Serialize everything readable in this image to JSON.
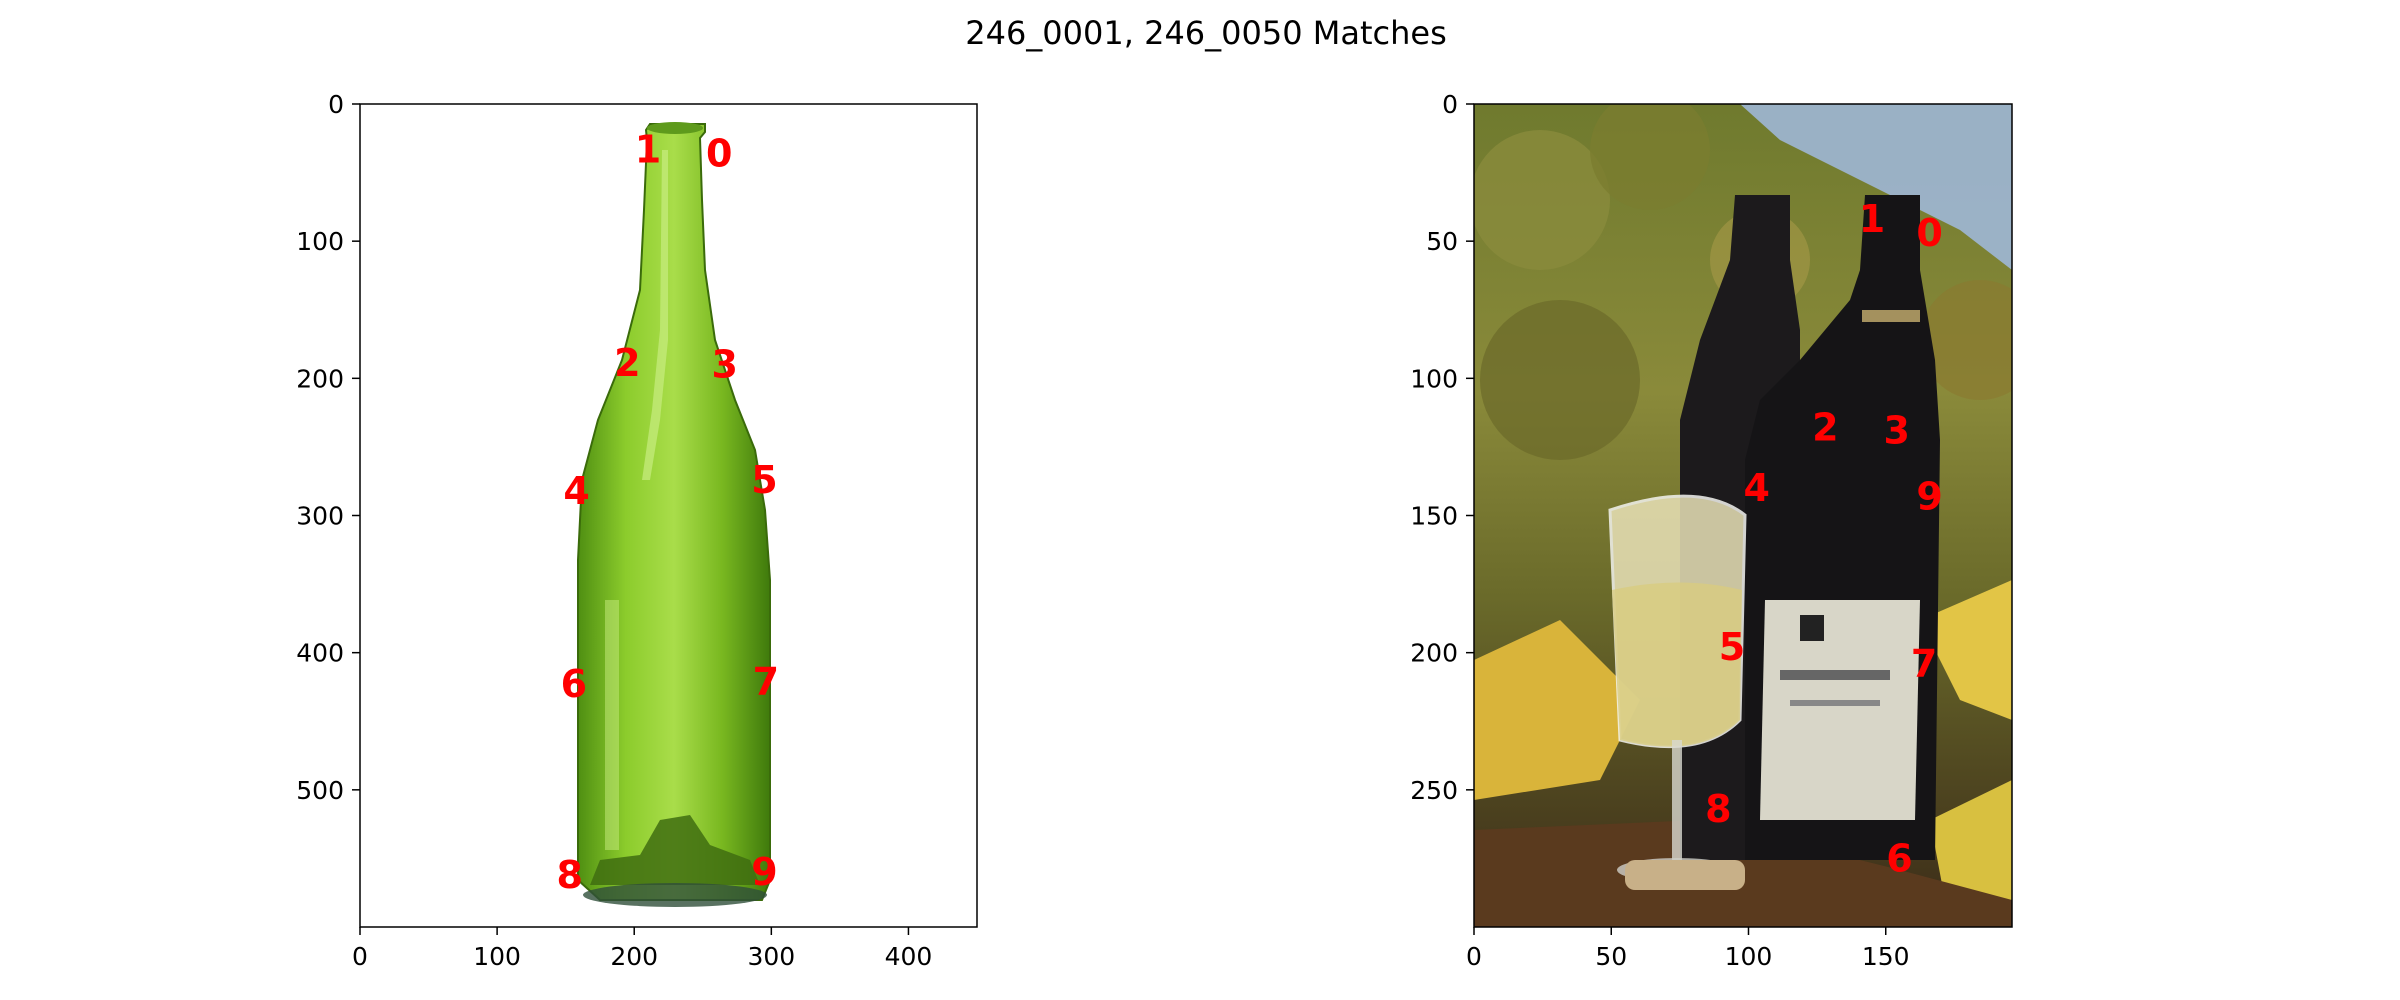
{
  "chart_data": {
    "type": "scatter",
    "title": "246_0001, 246_0050 Matches",
    "label_color": "#ff0000",
    "grid": false,
    "legend": "none",
    "panels": [
      {
        "id": "left",
        "image_content": "green glass wine bottle on white background",
        "xlim": [
          0,
          450
        ],
        "ylim": [
          600,
          0
        ],
        "xticks": [
          0,
          100,
          200,
          300,
          400
        ],
        "yticks": [
          0,
          100,
          200,
          300,
          400,
          500
        ],
        "points": [
          {
            "label": "0",
            "x": 262,
            "y": 36
          },
          {
            "label": "1",
            "x": 210,
            "y": 33
          },
          {
            "label": "2",
            "x": 195,
            "y": 189
          },
          {
            "label": "3",
            "x": 266,
            "y": 190
          },
          {
            "label": "4",
            "x": 158,
            "y": 282
          },
          {
            "label": "5",
            "x": 295,
            "y": 274
          },
          {
            "label": "6",
            "x": 156,
            "y": 423
          },
          {
            "label": "7",
            "x": 296,
            "y": 421
          },
          {
            "label": "8",
            "x": 153,
            "y": 562
          },
          {
            "label": "9",
            "x": 295,
            "y": 560
          }
        ]
      },
      {
        "id": "right",
        "image_content": "two wine bottles and a glass of white wine among autumn leaves",
        "xlim": [
          0,
          196
        ],
        "ylim": [
          300,
          0
        ],
        "xticks": [
          0,
          50,
          100,
          150
        ],
        "yticks": [
          0,
          50,
          100,
          150,
          200,
          250
        ],
        "points": [
          {
            "label": "0",
            "x": 166,
            "y": 47
          },
          {
            "label": "1",
            "x": 145,
            "y": 42
          },
          {
            "label": "2",
            "x": 128,
            "y": 118
          },
          {
            "label": "3",
            "x": 154,
            "y": 119
          },
          {
            "label": "4",
            "x": 103,
            "y": 140
          },
          {
            "label": "5",
            "x": 94,
            "y": 198
          },
          {
            "label": "6",
            "x": 155,
            "y": 275
          },
          {
            "label": "7",
            "x": 164,
            "y": 204
          },
          {
            "label": "8",
            "x": 89,
            "y": 257
          },
          {
            "label": "9",
            "x": 166,
            "y": 143
          }
        ]
      }
    ]
  }
}
